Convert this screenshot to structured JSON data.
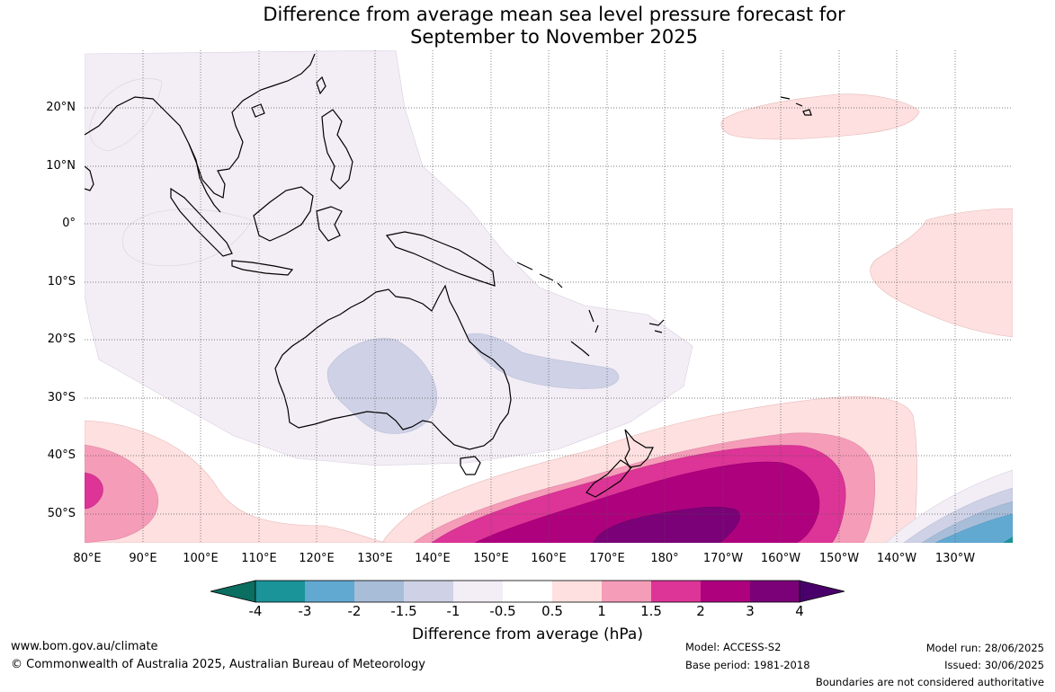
{
  "title_line1": "Difference from average mean sea level pressure forecast for",
  "title_line2": "September to November 2025",
  "lat_labels": [
    "20°N",
    "10°N",
    "0°",
    "10°S",
    "20°S",
    "30°S",
    "40°S",
    "50°S"
  ],
  "lon_labels": [
    "80°E",
    "90°E",
    "100°E",
    "110°E",
    "120°E",
    "130°E",
    "140°E",
    "150°E",
    "160°E",
    "170°E",
    "180°",
    "170°W",
    "160°W",
    "150°W",
    "140°W",
    "130°W"
  ],
  "colorbar": {
    "title": "Difference from average (hPa)",
    "ticks": [
      "-4",
      "-3",
      "-2",
      "-1.5",
      "-1",
      "-0.5",
      "0.5",
      "1",
      "1.5",
      "2",
      "3",
      "4"
    ],
    "colors": [
      "#0a6e60",
      "#1a9399",
      "#62a9d2",
      "#a7bdd8",
      "#cfd2e6",
      "#f3edf5",
      "#ffffff",
      "#fde0df",
      "#f59cb9",
      "#dd3497",
      "#ae017e",
      "#7a0177",
      "#49006a"
    ]
  },
  "footer": {
    "website": "www.bom.gov.au/climate",
    "copyright": "© Commonwealth of Australia 2025, Australian Bureau of Meteorology",
    "model": "Model: ACCESS-S2",
    "base_period": "Base period: 1981-2018",
    "model_run": "Model run: 28/06/2025",
    "issued": "Issued: 30/06/2025",
    "disclaimer": "Boundaries are not considered authoritative"
  }
}
